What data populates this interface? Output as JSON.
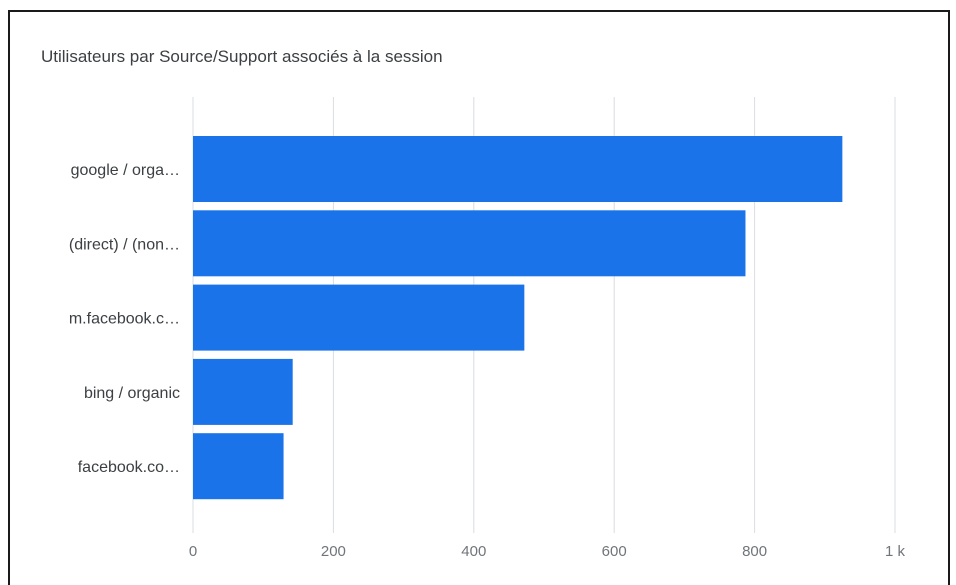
{
  "chart_data": {
    "type": "bar",
    "orientation": "horizontal",
    "title": "Utilisateurs par Source/Support associés à la session",
    "xlabel": "",
    "ylabel": "",
    "categories": [
      "google / orga…",
      "(direct) / (non…",
      "m.facebook.c…",
      "bing / organic",
      "facebook.co…"
    ],
    "values": [
      925,
      787,
      472,
      142,
      129
    ],
    "xlim": [
      0,
      1000
    ],
    "ticks": [
      {
        "value": 0,
        "label": "0"
      },
      {
        "value": 200,
        "label": "200"
      },
      {
        "value": 400,
        "label": "400"
      },
      {
        "value": 600,
        "label": "600"
      },
      {
        "value": 800,
        "label": "800"
      },
      {
        "value": 1000,
        "label": "1 k"
      }
    ],
    "grid": true,
    "legend": "none",
    "bar_color": "#1a73e8",
    "grid_color": "#dadce0"
  }
}
